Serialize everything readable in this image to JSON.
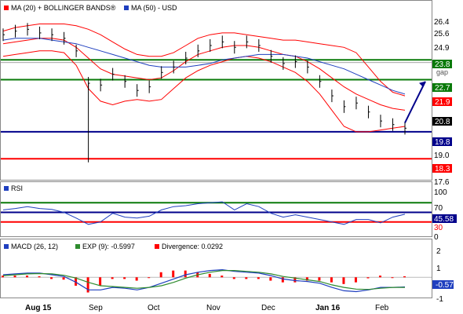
{
  "colors": {
    "price": "#000000",
    "bollinger": "#ff0000",
    "ma50": "#1f3fbf",
    "green": "#0a7a0a",
    "blue": "#00008b",
    "red": "#ff0000",
    "macd": "#1f3fbf",
    "signal": "#2e8b2e",
    "hist": "#ff0000"
  },
  "price_panel": {
    "legend": {
      "ma20": "MA (20) + BOLLINGER BANDS®",
      "ma50": "MA (50) - USD"
    },
    "yticks": [
      "26.4",
      "25.6",
      "24.9",
      "19.0",
      "17.6"
    ],
    "levels": [
      {
        "value": "23.8",
        "color": "#0a7a0a"
      },
      {
        "value": "gap",
        "color": "#555555"
      },
      {
        "value": "22.7",
        "color": "#0a7a0a"
      },
      {
        "value": "21.9",
        "color": "#ff0000"
      },
      {
        "value": "20.8",
        "color": "#000000"
      },
      {
        "value": "19.8",
        "color": "#00008b"
      },
      {
        "value": "18.3",
        "color": "#ff0000"
      }
    ]
  },
  "rsi_panel": {
    "legend": "RSI",
    "yticks": [
      "100",
      "70",
      "30",
      "0"
    ],
    "value_badge": "45.58"
  },
  "macd_panel": {
    "legend": {
      "macd": "MACD (26, 12)",
      "exp": "EXP (9): -0.5997",
      "div": "Divergence: 0.0292"
    },
    "yticks": [
      "2",
      "1",
      "0",
      "-1"
    ],
    "value_badge": "-0.57"
  },
  "xaxis": {
    "labels": [
      {
        "text": "Aug 15",
        "bold": true
      },
      {
        "text": "Sep",
        "bold": false
      },
      {
        "text": "Oct",
        "bold": false
      },
      {
        "text": "Nov",
        "bold": false
      },
      {
        "text": "Dec",
        "bold": false
      },
      {
        "text": "Jan 16",
        "bold": true
      },
      {
        "text": "Feb",
        "bold": false
      }
    ]
  },
  "chart_data": [
    {
      "type": "line",
      "panel": "price",
      "ylim": [
        17.0,
        27.0
      ],
      "level_lines": [
        23.8,
        23.65,
        22.7,
        19.8,
        18.3
      ],
      "series": [
        {
          "name": "MA (20) + BOLLINGER BANDS®",
          "role": "upper",
          "values": [
            25.4,
            25.6,
            25.7,
            25.8,
            25.8,
            25.8,
            25.7,
            25.5,
            25.2,
            24.8,
            24.4,
            24.1,
            24.0,
            24.0,
            24.2,
            24.6,
            25.0,
            25.2,
            25.3,
            25.3,
            25.2,
            25.1,
            25.0,
            24.9,
            24.9,
            24.8,
            24.7,
            24.6,
            24.5,
            24.2,
            23.4,
            22.6,
            22.0,
            21.8
          ]
        },
        {
          "name": "MA (20) + BOLLINGER BANDS®",
          "role": "middle",
          "values": [
            24.7,
            24.8,
            24.9,
            25.0,
            25.0,
            24.9,
            24.5,
            23.9,
            23.3,
            23.0,
            22.9,
            22.8,
            22.7,
            22.8,
            23.2,
            23.7,
            24.1,
            24.3,
            24.5,
            24.6,
            24.6,
            24.5,
            24.3,
            24.1,
            24.0,
            23.7,
            23.3,
            22.8,
            22.3,
            21.9,
            21.6,
            21.3,
            21.1,
            21.0
          ]
        },
        {
          "name": "MA (20) + BOLLINGER BANDS®",
          "role": "lower",
          "values": [
            24.0,
            24.1,
            24.2,
            24.3,
            24.3,
            24.2,
            23.5,
            22.2,
            21.5,
            21.3,
            21.5,
            21.6,
            21.5,
            21.6,
            22.2,
            22.8,
            23.2,
            23.5,
            23.7,
            23.9,
            24.0,
            23.9,
            23.7,
            23.4,
            23.1,
            22.6,
            21.9,
            21.0,
            20.1,
            19.8,
            19.8,
            19.9,
            20.0,
            20.1
          ]
        },
        {
          "name": "MA (50) - USD",
          "values": [
            24.9,
            25.0,
            25.0,
            25.0,
            24.9,
            24.8,
            24.7,
            24.5,
            24.3,
            24.1,
            23.9,
            23.7,
            23.5,
            23.4,
            23.4,
            23.4,
            23.5,
            23.6,
            23.8,
            23.9,
            24.0,
            24.1,
            24.1,
            24.1,
            24.0,
            23.9,
            23.7,
            23.5,
            23.3,
            23.0,
            22.7,
            22.4,
            22.1,
            21.9
          ]
        },
        {
          "name": "price",
          "values": [
            25.2,
            25.4,
            25.5,
            25.3,
            25.2,
            25.0,
            24.3,
            22.5,
            22.4,
            23.0,
            22.6,
            22.1,
            22.3,
            23.1,
            23.4,
            23.9,
            24.3,
            24.6,
            24.8,
            24.5,
            24.8,
            24.6,
            24.0,
            23.6,
            23.7,
            23.4,
            22.6,
            21.8,
            21.2,
            21.4,
            20.9,
            20.4,
            20.2,
            20.0
          ]
        }
      ],
      "projection": [
        20.3,
        22.6
      ],
      "spike_low": 18.1
    },
    {
      "type": "line",
      "panel": "rsi",
      "ylim": [
        0,
        100
      ],
      "levels": [
        70,
        50,
        30
      ],
      "series": [
        {
          "name": "RSI",
          "values": [
            55,
            58,
            62,
            58,
            56,
            50,
            38,
            25,
            30,
            48,
            40,
            38,
            42,
            55,
            62,
            64,
            68,
            70,
            72,
            55,
            68,
            62,
            48,
            40,
            45,
            40,
            35,
            30,
            25,
            35,
            35,
            28,
            40,
            46
          ]
        }
      ]
    },
    {
      "type": "line",
      "panel": "macd",
      "ylim": [
        -1.2,
        2.2
      ],
      "series": [
        {
          "name": "MACD (26, 12)",
          "values": [
            0.15,
            0.2,
            0.25,
            0.25,
            0.15,
            0.05,
            -0.3,
            -0.75,
            -0.75,
            -0.6,
            -0.65,
            -0.75,
            -0.6,
            -0.35,
            -0.1,
            0.15,
            0.3,
            0.4,
            0.45,
            0.35,
            0.3,
            0.25,
            0.1,
            -0.1,
            -0.2,
            -0.25,
            -0.35,
            -0.6,
            -0.8,
            -0.85,
            -0.75,
            -0.6,
            -0.6,
            -0.57
          ]
        },
        {
          "name": "EXP (9): -0.5997",
          "values": [
            0.1,
            0.15,
            0.2,
            0.22,
            0.2,
            0.12,
            -0.05,
            -0.3,
            -0.5,
            -0.55,
            -0.6,
            -0.65,
            -0.6,
            -0.5,
            -0.3,
            -0.05,
            0.15,
            0.3,
            0.4,
            0.4,
            0.35,
            0.3,
            0.2,
            0.05,
            -0.05,
            -0.15,
            -0.25,
            -0.45,
            -0.6,
            -0.7,
            -0.72,
            -0.65,
            -0.6,
            -0.6
          ]
        }
      ]
    }
  ]
}
